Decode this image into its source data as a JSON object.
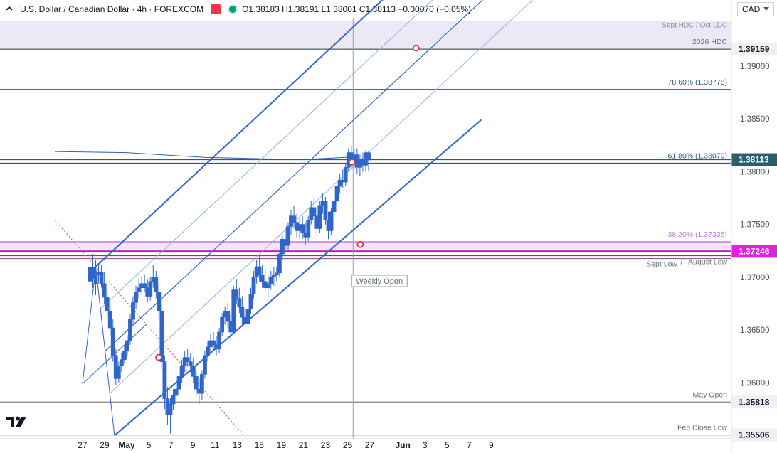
{
  "header": {
    "title": "U.S. Dollar / Canadian Dollar · 4h · FOREXCOM",
    "ohlc": "O1.38183  H1.38191  L1.38001  C1.38113  −0.00070 (−0.05%)"
  },
  "currency_button": {
    "label": "CAD"
  },
  "chart_data": {
    "type": "candlestick",
    "instrument": "U.S. Dollar / Canadian Dollar",
    "timeframe": "4h",
    "source": "FOREXCOM",
    "ohlc_last": {
      "open": 1.38183,
      "high": 1.38191,
      "low": 1.38001,
      "close": 1.38113,
      "change": -0.0007,
      "change_pct": -0.05
    },
    "y_axis": {
      "range": [
        1.3547,
        1.3945
      ],
      "ticks": [
        "1.35500",
        "1.36000",
        "1.36500",
        "1.37000",
        "1.37500",
        "1.38000",
        "1.38500",
        "1.39000"
      ],
      "tick_values": [
        1.355,
        1.36,
        1.365,
        1.37,
        1.375,
        1.38,
        1.385,
        1.39
      ]
    },
    "x_axis": {
      "ticks": [
        "27",
        "29",
        "May",
        "5",
        "7",
        "9",
        "11",
        "13",
        "15",
        "19",
        "21",
        "23",
        "25",
        "27",
        "Jun",
        "3",
        "5",
        "7",
        "9"
      ],
      "tick_index": [
        -1,
        1,
        3,
        5,
        7,
        9,
        11,
        13,
        15,
        17,
        19,
        21,
        23,
        25,
        28,
        30,
        32,
        34,
        36
      ]
    },
    "price_labels": [
      {
        "text": "1.39159",
        "value": 1.39159,
        "bg": "#eef0f4",
        "fg": "#131722"
      },
      {
        "text": "1.38113",
        "value": 1.38113,
        "bg": "#2a5f6e",
        "fg": "#ffffff"
      },
      {
        "text": "1.37246",
        "value": 1.37246,
        "bg": "#e020e0",
        "fg": "#ffffff"
      },
      {
        "text": "1.35818",
        "value": 1.35818,
        "bg": "#eef0f4",
        "fg": "#131722"
      },
      {
        "text": "1.35506",
        "value": 1.35506,
        "bg": "#eef0f4",
        "fg": "#131722"
      }
    ],
    "zones": [
      {
        "label": "Sept HDC / Oct LDC",
        "from": 1.39159,
        "to": 1.39426,
        "color": "#ebe9f6"
      }
    ],
    "levels": [
      {
        "value": 1.39159,
        "label": "2026 HDC",
        "color": "#5d6b73"
      },
      {
        "value": 1.38778,
        "label": "78.60% (1.38778)",
        "color": "#2a5f6e"
      },
      {
        "value": 1.38113,
        "label": "",
        "color": "#2a5f6e"
      },
      {
        "value": 1.38079,
        "label": "61.80% (1.38079)",
        "color": "#2a5f6e"
      },
      {
        "value": 1.35818,
        "label": "May Open",
        "color": "#909090"
      },
      {
        "value": 1.35506,
        "label": "Feb Close Low",
        "color": "#5d6b73"
      }
    ],
    "fib_zone": {
      "label": "38.20% (1.37335)",
      "value": 1.37335,
      "color": "#c47ad8"
    },
    "magenta_lines": [
      1.37246,
      1.37207
    ],
    "support_labels": [
      "Sept Low",
      "August Low"
    ],
    "weekly_open_label": "Weekly Open",
    "weekly_open_index": 23.5,
    "ma_line": [
      [
        -3.5,
        1.3819
      ],
      [
        3,
        1.3818
      ],
      [
        10,
        1.38135
      ],
      [
        16,
        1.3812
      ],
      [
        20,
        1.3812
      ],
      [
        23.8,
        1.3814
      ]
    ],
    "pitchfork": {
      "p1": [
        0.2,
        1.371
      ],
      "p2": [
        1.9,
        1.355
      ],
      "upper_end": [
        26.5,
        1.3966
      ],
      "lower_end": [
        35.1,
        1.3849
      ]
    },
    "trendline_red_dotted": [
      [
        -3.5,
        1.3754
      ],
      [
        13.8,
        1.3548
      ]
    ],
    "markers": [
      {
        "x": 5.9,
        "y": 1.3624
      },
      {
        "x": 23.4,
        "y": 1.3809
      },
      {
        "x": 24.15,
        "y": 1.3731
      },
      {
        "x": 29.2,
        "y": 1.3917
      }
    ],
    "candles_note": "Approximate 4h OHLC reading from 28 Apr through 26 May",
    "candles": [
      [
        1.3694,
        1.3716,
        1.3683,
        1.3702
      ],
      [
        1.3702,
        1.3712,
        1.3694,
        1.3705
      ],
      [
        1.3705,
        1.3712,
        1.369,
        1.3694
      ],
      [
        1.3694,
        1.3705,
        1.3675,
        1.3681
      ],
      [
        1.3681,
        1.3688,
        1.3662,
        1.3668
      ],
      [
        1.3668,
        1.3676,
        1.3645,
        1.3652
      ],
      [
        1.3652,
        1.366,
        1.362,
        1.3626
      ],
      [
        1.3626,
        1.3632,
        1.3598,
        1.3604
      ],
      [
        1.3604,
        1.362,
        1.36,
        1.3616
      ],
      [
        1.3616,
        1.3628,
        1.361,
        1.3622
      ],
      [
        1.3622,
        1.3636,
        1.3618,
        1.363
      ],
      [
        1.363,
        1.3645,
        1.3626,
        1.364
      ],
      [
        1.364,
        1.3665,
        1.3636,
        1.366
      ],
      [
        1.366,
        1.3682,
        1.3655,
        1.3676
      ],
      [
        1.3676,
        1.3692,
        1.367,
        1.3686
      ],
      [
        1.3686,
        1.3698,
        1.368,
        1.369
      ],
      [
        1.369,
        1.37,
        1.3684,
        1.3694
      ],
      [
        1.3694,
        1.3702,
        1.3686,
        1.369
      ],
      [
        1.369,
        1.3698,
        1.3676,
        1.3682
      ],
      [
        1.3682,
        1.37,
        1.3678,
        1.3696
      ],
      [
        1.3696,
        1.3712,
        1.369,
        1.37
      ],
      [
        1.37,
        1.3706,
        1.368,
        1.3686
      ],
      [
        1.3686,
        1.3694,
        1.366,
        1.3668
      ],
      [
        1.3668,
        1.3674,
        1.361,
        1.362
      ],
      [
        1.362,
        1.3626,
        1.3575,
        1.3585
      ],
      [
        1.3585,
        1.3596,
        1.356,
        1.357
      ],
      [
        1.357,
        1.3586,
        1.3552,
        1.358
      ],
      [
        1.358,
        1.3594,
        1.3574,
        1.3588
      ],
      [
        1.3588,
        1.36,
        1.358,
        1.3594
      ],
      [
        1.3594,
        1.3612,
        1.3588,
        1.3606
      ],
      [
        1.3606,
        1.3622,
        1.36,
        1.3616
      ],
      [
        1.3616,
        1.363,
        1.361,
        1.3624
      ],
      [
        1.3624,
        1.3632,
        1.3615,
        1.362
      ],
      [
        1.362,
        1.3628,
        1.361,
        1.3616
      ],
      [
        1.3616,
        1.3624,
        1.36,
        1.3606
      ],
      [
        1.3606,
        1.3612,
        1.3588,
        1.3594
      ],
      [
        1.3594,
        1.3604,
        1.358,
        1.359
      ],
      [
        1.359,
        1.3612,
        1.3584,
        1.3608
      ],
      [
        1.3608,
        1.363,
        1.3604,
        1.3626
      ],
      [
        1.3626,
        1.364,
        1.362,
        1.3634
      ],
      [
        1.3634,
        1.3646,
        1.3628,
        1.364
      ],
      [
        1.364,
        1.3648,
        1.363,
        1.3636
      ],
      [
        1.3636,
        1.3644,
        1.3626,
        1.3632
      ],
      [
        1.3632,
        1.3652,
        1.3628,
        1.3648
      ],
      [
        1.3648,
        1.3666,
        1.3644,
        1.3662
      ],
      [
        1.3662,
        1.3672,
        1.3655,
        1.3668
      ],
      [
        1.3668,
        1.3676,
        1.3652,
        1.3658
      ],
      [
        1.3658,
        1.3664,
        1.364,
        1.3648
      ],
      [
        1.3648,
        1.3692,
        1.3646,
        1.3688
      ],
      [
        1.3688,
        1.3698,
        1.3675,
        1.368
      ],
      [
        1.368,
        1.369,
        1.3666,
        1.3672
      ],
      [
        1.3672,
        1.3682,
        1.3655,
        1.3662
      ],
      [
        1.3662,
        1.367,
        1.3648,
        1.3656
      ],
      [
        1.3656,
        1.3676,
        1.365,
        1.367
      ],
      [
        1.367,
        1.369,
        1.3665,
        1.3684
      ],
      [
        1.3684,
        1.3706,
        1.368,
        1.37
      ],
      [
        1.37,
        1.3716,
        1.3694,
        1.371
      ],
      [
        1.371,
        1.372,
        1.3696,
        1.3702
      ],
      [
        1.3702,
        1.3712,
        1.369,
        1.3696
      ],
      [
        1.3696,
        1.3708,
        1.3686,
        1.369
      ],
      [
        1.369,
        1.3702,
        1.368,
        1.3694
      ],
      [
        1.3694,
        1.3706,
        1.3688,
        1.37
      ],
      [
        1.37,
        1.371,
        1.3692,
        1.3702
      ],
      [
        1.3702,
        1.371,
        1.3696,
        1.3704
      ],
      [
        1.3704,
        1.3726,
        1.37,
        1.3722
      ],
      [
        1.3722,
        1.374,
        1.3716,
        1.3736
      ],
      [
        1.3736,
        1.3746,
        1.3724,
        1.373
      ],
      [
        1.373,
        1.3752,
        1.3726,
        1.3748
      ],
      [
        1.3748,
        1.3764,
        1.374,
        1.3758
      ],
      [
        1.3758,
        1.3768,
        1.3746,
        1.3752
      ],
      [
        1.3752,
        1.376,
        1.3738,
        1.3744
      ],
      [
        1.3744,
        1.3756,
        1.3736,
        1.375
      ],
      [
        1.375,
        1.3758,
        1.3736,
        1.3742
      ],
      [
        1.3742,
        1.3752,
        1.373,
        1.3738
      ],
      [
        1.3738,
        1.3758,
        1.3734,
        1.3754
      ],
      [
        1.3754,
        1.3772,
        1.375,
        1.3766
      ],
      [
        1.3766,
        1.3776,
        1.3752,
        1.3758
      ],
      [
        1.3758,
        1.3768,
        1.3742,
        1.3746
      ],
      [
        1.3746,
        1.3772,
        1.3742,
        1.3768
      ],
      [
        1.3768,
        1.378,
        1.376,
        1.3772
      ],
      [
        1.3772,
        1.3776,
        1.375,
        1.3754
      ],
      [
        1.3754,
        1.3762,
        1.3736,
        1.3744
      ],
      [
        1.3744,
        1.3766,
        1.374,
        1.3762
      ],
      [
        1.3762,
        1.3776,
        1.3756,
        1.3772
      ],
      [
        1.3772,
        1.379,
        1.3768,
        1.3786
      ],
      [
        1.3786,
        1.3798,
        1.378,
        1.3792
      ],
      [
        1.3792,
        1.3802,
        1.3784,
        1.379
      ],
      [
        1.379,
        1.3808,
        1.3786,
        1.3804
      ],
      [
        1.3804,
        1.3822,
        1.38,
        1.3818
      ],
      [
        1.3818,
        1.3824,
        1.3802,
        1.3808
      ],
      [
        1.3808,
        1.3822,
        1.3802,
        1.3816
      ],
      [
        1.3816,
        1.3822,
        1.3798,
        1.3804
      ],
      [
        1.3804,
        1.3816,
        1.3796,
        1.3812
      ],
      [
        1.3812,
        1.3818,
        1.38,
        1.3806
      ],
      [
        1.3806,
        1.382,
        1.38,
        1.3818
      ],
      [
        1.3818,
        1.3819,
        1.38,
        1.3811
      ]
    ]
  }
}
